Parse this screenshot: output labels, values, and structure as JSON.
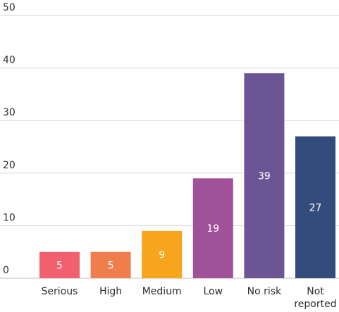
{
  "chart_data": {
    "type": "bar",
    "categories": [
      [
        "Serious"
      ],
      [
        "High"
      ],
      [
        "Medium"
      ],
      [
        "Low"
      ],
      [
        "No risk"
      ],
      [
        "Not",
        "reported"
      ]
    ],
    "values": [
      5,
      5,
      9,
      19,
      39,
      27
    ],
    "data_labels": [
      "5",
      "5",
      "9",
      "19",
      "39",
      "27"
    ],
    "colors": [
      "#f0606e",
      "#f07e4c",
      "#f6a51c",
      "#a0519a",
      "#6c5595",
      "#334c7c"
    ],
    "yticks": [
      "0",
      "10",
      "20",
      "30",
      "40",
      "50"
    ],
    "ylim": [
      0,
      50
    ],
    "grid": true,
    "legend": "none"
  }
}
